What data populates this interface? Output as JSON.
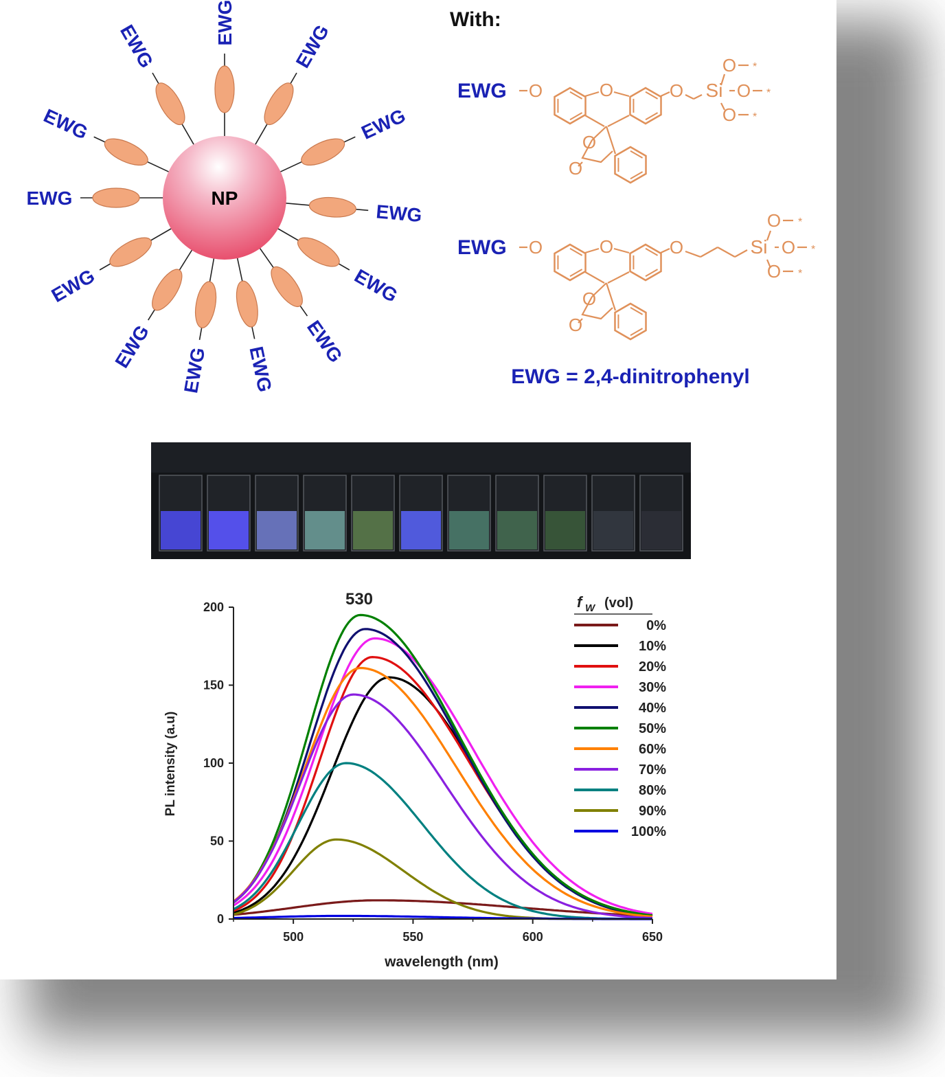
{
  "nanoparticle": {
    "core_label": "NP",
    "group_label": "EWG",
    "core_color": "#e8506e",
    "ligand_color": "#f2a77c",
    "label_color": "#1a22b4"
  },
  "structures": {
    "with_label": "With:",
    "ewg_label": "EWG",
    "definition": "EWG = 2,4-dinitrophenyl",
    "atom_O": "O",
    "atom_Si": "Si",
    "line_color": "#e0915a"
  },
  "photo": {
    "vial_glow": [
      "#4a4ae6",
      "#5a55ff",
      "#6e7ac8",
      "#6a9a96",
      "#5a7a4a",
      "#5560f0",
      "#4a7a6a",
      "#446a50",
      "#3a5a3a",
      "#333840",
      "#2c2f36"
    ]
  },
  "chart_data": {
    "type": "line",
    "peak_annotation": "530",
    "xlabel": "wavelength (nm)",
    "ylabel": "PL intensity (a.u)",
    "xlim": [
      475,
      650
    ],
    "ylim": [
      0,
      200
    ],
    "xticks": [
      500,
      550,
      600,
      650
    ],
    "yticks": [
      0,
      50,
      100,
      150,
      200
    ],
    "legend_title_italic": "f",
    "legend_title_sub": "W",
    "legend_title_rest": "(vol)",
    "legend_position": "top-right",
    "series": [
      {
        "name": "0%",
        "color": "#7a1a1a",
        "peak_x": 535,
        "peak_y": 12,
        "sigma_left": 35,
        "sigma_right": 60
      },
      {
        "name": "10%",
        "color": "#000000",
        "peak_x": 540,
        "peak_y": 155,
        "sigma_left": 24,
        "sigma_right": 37
      },
      {
        "name": "20%",
        "color": "#e01010",
        "peak_x": 533,
        "peak_y": 168,
        "sigma_left": 22,
        "sigma_right": 40
      },
      {
        "name": "30%",
        "color": "#f020f0",
        "peak_x": 534,
        "peak_y": 180,
        "sigma_left": 24,
        "sigma_right": 41
      },
      {
        "name": "40%",
        "color": "#101070",
        "peak_x": 530,
        "peak_y": 186,
        "sigma_left": 23,
        "sigma_right": 40
      },
      {
        "name": "50%",
        "color": "#008000",
        "peak_x": 528,
        "peak_y": 195,
        "sigma_left": 22,
        "sigma_right": 41
      },
      {
        "name": "60%",
        "color": "#ff8000",
        "peak_x": 528,
        "peak_y": 161,
        "sigma_left": 23,
        "sigma_right": 40
      },
      {
        "name": "70%",
        "color": "#8a20e0",
        "peak_x": 525,
        "peak_y": 144,
        "sigma_left": 22,
        "sigma_right": 38
      },
      {
        "name": "80%",
        "color": "#008080",
        "peak_x": 522,
        "peak_y": 100,
        "sigma_left": 20,
        "sigma_right": 32
      },
      {
        "name": "90%",
        "color": "#808000",
        "peak_x": 518,
        "peak_y": 51,
        "sigma_left": 18,
        "sigma_right": 28
      },
      {
        "name": "100%",
        "color": "#0000e0",
        "peak_x": 520,
        "peak_y": 2,
        "sigma_left": 30,
        "sigma_right": 40
      }
    ]
  }
}
